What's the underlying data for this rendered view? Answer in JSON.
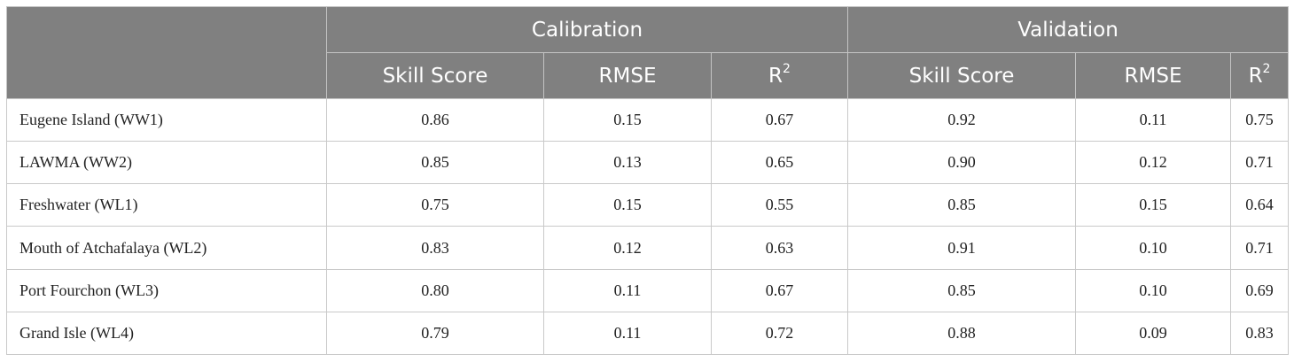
{
  "header": {
    "group_calibration": "Calibration",
    "group_validation": "Validation",
    "col_skill": "Skill Score",
    "col_rmse": "RMSE",
    "col_r": "R",
    "col_r_sup": "2"
  },
  "rows": [
    {
      "site": "Eugene Island (WW1)",
      "cal_skill": "0.86",
      "cal_rmse": "0.15",
      "cal_r2": "0.67",
      "val_skill": "0.92",
      "val_rmse": "0.11",
      "val_r2": "0.75"
    },
    {
      "site": "LAWMA (WW2)",
      "cal_skill": "0.85",
      "cal_rmse": "0.13",
      "cal_r2": "0.65",
      "val_skill": "0.90",
      "val_rmse": "0.12",
      "val_r2": "0.71"
    },
    {
      "site": "Freshwater (WL1)",
      "cal_skill": "0.75",
      "cal_rmse": "0.15",
      "cal_r2": "0.55",
      "val_skill": "0.85",
      "val_rmse": "0.15",
      "val_r2": "0.64"
    },
    {
      "site": "Mouth of Atchafalaya (WL2)",
      "cal_skill": "0.83",
      "cal_rmse": "0.12",
      "cal_r2": "0.63",
      "val_skill": "0.91",
      "val_rmse": "0.10",
      "val_r2": "0.71"
    },
    {
      "site": "Port Fourchon (WL3)",
      "cal_skill": "0.80",
      "cal_rmse": "0.11",
      "cal_r2": "0.67",
      "val_skill": "0.85",
      "val_rmse": "0.10",
      "val_r2": "0.69"
    },
    {
      "site": "Grand Isle (WL4)",
      "cal_skill": "0.79",
      "cal_rmse": "0.11",
      "cal_r2": "0.72",
      "val_skill": "0.88",
      "val_rmse": "0.09",
      "val_r2": "0.83"
    }
  ]
}
